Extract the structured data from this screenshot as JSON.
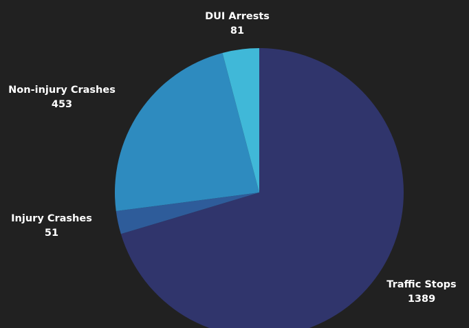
{
  "chart_data": {
    "type": "pie",
    "start_angle_deg": 0,
    "direction": "clockwise",
    "slices": [
      {
        "label": "Traffic Stops",
        "value": 1389,
        "color": "#30356c"
      },
      {
        "label": "Injury Crashes",
        "value": 51,
        "color": "#2e5c9a"
      },
      {
        "label": "Non-injury Crashes",
        "value": 453,
        "color": "#2e8bbf"
      },
      {
        "label": "DUI Arrests",
        "value": 81,
        "color": "#40b8d8"
      }
    ]
  },
  "background_color": "#212121",
  "label_color": "#ffffff"
}
